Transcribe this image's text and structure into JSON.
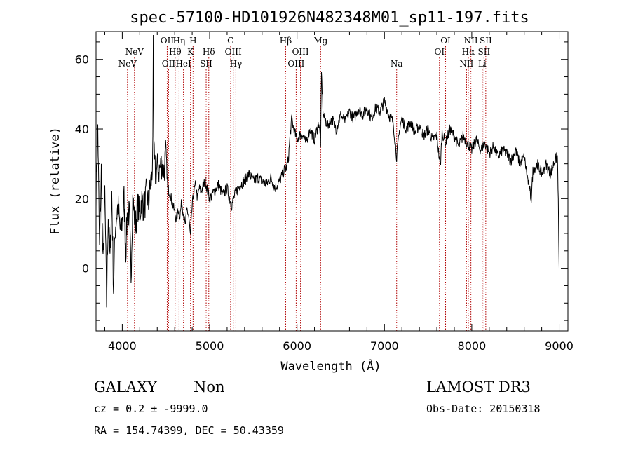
{
  "chart_data": {
    "type": "line",
    "title": "spec-57100-HD101926N482348M01_sp11-197.fits",
    "xlabel": "Wavelength (Å)",
    "ylabel": "Flux (relative)",
    "xlim": [
      3700,
      9100
    ],
    "ylim": [
      -18,
      68
    ],
    "x_ticks": [
      4000,
      5000,
      6000,
      7000,
      8000,
      9000
    ],
    "y_ticks": [
      0,
      20,
      40,
      60
    ],
    "x_tick_labels": [
      "4000",
      "5000",
      "6000",
      "7000",
      "8000",
      "9000"
    ],
    "y_tick_labels": [
      "0",
      "20",
      "40",
      "60"
    ],
    "grid": false,
    "spectrum_anchor_points": [
      [
        3700,
        22
      ],
      [
        3720,
        41
      ],
      [
        3740,
        5
      ],
      [
        3760,
        28
      ],
      [
        3780,
        0
      ],
      [
        3800,
        22
      ],
      [
        3820,
        -10
      ],
      [
        3840,
        16
      ],
      [
        3860,
        2
      ],
      [
        3880,
        22
      ],
      [
        3900,
        -6
      ],
      [
        3920,
        12
      ],
      [
        3950,
        18
      ],
      [
        3980,
        10
      ],
      [
        4000,
        14
      ],
      [
        4020,
        20
      ],
      [
        4040,
        5
      ],
      [
        4060,
        17
      ],
      [
        4080,
        15
      ],
      [
        4100,
        -2
      ],
      [
        4120,
        20
      ],
      [
        4150,
        12
      ],
      [
        4180,
        18
      ],
      [
        4200,
        15
      ],
      [
        4220,
        20
      ],
      [
        4250,
        17
      ],
      [
        4280,
        22
      ],
      [
        4300,
        18
      ],
      [
        4320,
        24
      ],
      [
        4340,
        26
      ],
      [
        4350,
        38
      ],
      [
        4355,
        67
      ],
      [
        4362,
        32
      ],
      [
        4380,
        27
      ],
      [
        4400,
        29
      ],
      [
        4420,
        28
      ],
      [
        4450,
        30
      ],
      [
        4480,
        28
      ],
      [
        4500,
        34
      ],
      [
        4520,
        23
      ],
      [
        4540,
        22
      ],
      [
        4560,
        20
      ],
      [
        4580,
        18
      ],
      [
        4600,
        16
      ],
      [
        4620,
        14
      ],
      [
        4640,
        17
      ],
      [
        4660,
        15
      ],
      [
        4680,
        19
      ],
      [
        4700,
        16
      ],
      [
        4720,
        12
      ],
      [
        4740,
        17
      ],
      [
        4760,
        15
      ],
      [
        4780,
        9
      ],
      [
        4800,
        18
      ],
      [
        4820,
        22
      ],
      [
        4840,
        24
      ],
      [
        4860,
        20
      ],
      [
        4880,
        23
      ],
      [
        4900,
        22
      ],
      [
        4950,
        25
      ],
      [
        5000,
        20
      ],
      [
        5050,
        22
      ],
      [
        5100,
        24
      ],
      [
        5150,
        21
      ],
      [
        5200,
        23
      ],
      [
        5250,
        18
      ],
      [
        5300,
        22
      ],
      [
        5350,
        24
      ],
      [
        5400,
        25
      ],
      [
        5450,
        27
      ],
      [
        5500,
        25
      ],
      [
        5550,
        26
      ],
      [
        5600,
        25
      ],
      [
        5650,
        24
      ],
      [
        5700,
        26
      ],
      [
        5750,
        23
      ],
      [
        5800,
        25
      ],
      [
        5850,
        28
      ],
      [
        5880,
        29
      ],
      [
        5900,
        31
      ],
      [
        5920,
        38
      ],
      [
        5940,
        43
      ],
      [
        5960,
        40
      ],
      [
        6000,
        37
      ],
      [
        6050,
        39
      ],
      [
        6100,
        36
      ],
      [
        6150,
        40
      ],
      [
        6200,
        37
      ],
      [
        6250,
        42
      ],
      [
        6270,
        36
      ],
      [
        6280,
        56
      ],
      [
        6300,
        44
      ],
      [
        6350,
        41
      ],
      [
        6400,
        43
      ],
      [
        6450,
        40
      ],
      [
        6500,
        44
      ],
      [
        6550,
        42
      ],
      [
        6600,
        45
      ],
      [
        6650,
        43
      ],
      [
        6700,
        46
      ],
      [
        6750,
        44
      ],
      [
        6800,
        46
      ],
      [
        6850,
        43
      ],
      [
        6900,
        46
      ],
      [
        6950,
        45
      ],
      [
        7000,
        48
      ],
      [
        7050,
        44
      ],
      [
        7100,
        42
      ],
      [
        7140,
        32
      ],
      [
        7180,
        41
      ],
      [
        7200,
        43
      ],
      [
        7250,
        40
      ],
      [
        7300,
        42
      ],
      [
        7350,
        39
      ],
      [
        7400,
        41
      ],
      [
        7450,
        38
      ],
      [
        7500,
        40
      ],
      [
        7550,
        37
      ],
      [
        7600,
        38
      ],
      [
        7640,
        29
      ],
      [
        7660,
        39
      ],
      [
        7700,
        36
      ],
      [
        7750,
        40
      ],
      [
        7800,
        38
      ],
      [
        7850,
        35
      ],
      [
        7900,
        38
      ],
      [
        7950,
        36
      ],
      [
        8000,
        34
      ],
      [
        8050,
        37
      ],
      [
        8100,
        34
      ],
      [
        8150,
        36
      ],
      [
        8200,
        33
      ],
      [
        8250,
        35
      ],
      [
        8300,
        32
      ],
      [
        8350,
        34
      ],
      [
        8400,
        33
      ],
      [
        8450,
        31
      ],
      [
        8500,
        34
      ],
      [
        8550,
        30
      ],
      [
        8600,
        32
      ],
      [
        8650,
        24
      ],
      [
        8680,
        20
      ],
      [
        8700,
        28
      ],
      [
        8750,
        30
      ],
      [
        8800,
        27
      ],
      [
        8850,
        30
      ],
      [
        8900,
        27
      ],
      [
        8950,
        31
      ],
      [
        8980,
        32
      ],
      [
        8990,
        20
      ],
      [
        8995,
        8
      ],
      [
        9000,
        0
      ]
    ],
    "noise_amplitude": 3.2,
    "spectral_lines": [
      {
        "label": "NeV",
        "x": 4060,
        "row": 2
      },
      {
        "label": "NeV",
        "x": 4140,
        "row": 1
      },
      {
        "label": "OII",
        "x": 4514,
        "row": 0
      },
      {
        "label": "OII",
        "x": 4530,
        "row": 2
      },
      {
        "label": "Hθ",
        "x": 4605,
        "row": 1
      },
      {
        "label": "Hη",
        "x": 4650,
        "row": 0
      },
      {
        "label": "HeI",
        "x": 4700,
        "row": 2
      },
      {
        "label": "K",
        "x": 4780,
        "row": 1
      },
      {
        "label": "H",
        "x": 4810,
        "row": 0
      },
      {
        "label": "SII",
        "x": 4960,
        "row": 2
      },
      {
        "label": "Hδ",
        "x": 4990,
        "row": 1
      },
      {
        "label": "G",
        "x": 5240,
        "row": 0
      },
      {
        "label": "OIII",
        "x": 5270,
        "row": 1
      },
      {
        "label": "Hγ",
        "x": 5300,
        "row": 2
      },
      {
        "label": "Hβ",
        "x": 5870,
        "row": 0
      },
      {
        "label": "OIII",
        "x": 5990,
        "row": 2
      },
      {
        "label": "OIII",
        "x": 6040,
        "row": 1
      },
      {
        "label": "Mg",
        "x": 6270,
        "row": 0
      },
      {
        "label": "Na",
        "x": 7140,
        "row": 2
      },
      {
        "label": "OI",
        "x": 7630,
        "row": 1
      },
      {
        "label": "OI",
        "x": 7700,
        "row": 0
      },
      {
        "label": "NII",
        "x": 7940,
        "row": 2
      },
      {
        "label": "Hα",
        "x": 7960,
        "row": 1
      },
      {
        "label": "NII",
        "x": 7990,
        "row": 0
      },
      {
        "label": "Li",
        "x": 8120,
        "row": 2
      },
      {
        "label": "SII",
        "x": 8140,
        "row": 1
      },
      {
        "label": "SII",
        "x": 8160,
        "row": 0
      }
    ],
    "colors": {
      "spectrum": "#000000",
      "lines": "#b00000",
      "axes": "#000000"
    }
  },
  "footer": {
    "class_label": "GALAXY",
    "subclass_label": "Non",
    "survey_label": "LAMOST DR3",
    "cz_text": "cz = 0.2 ± -9999.0",
    "obs_date_text": "Obs-Date: 20150318",
    "radec_text": "RA = 154.74399, DEC =  50.43359"
  }
}
